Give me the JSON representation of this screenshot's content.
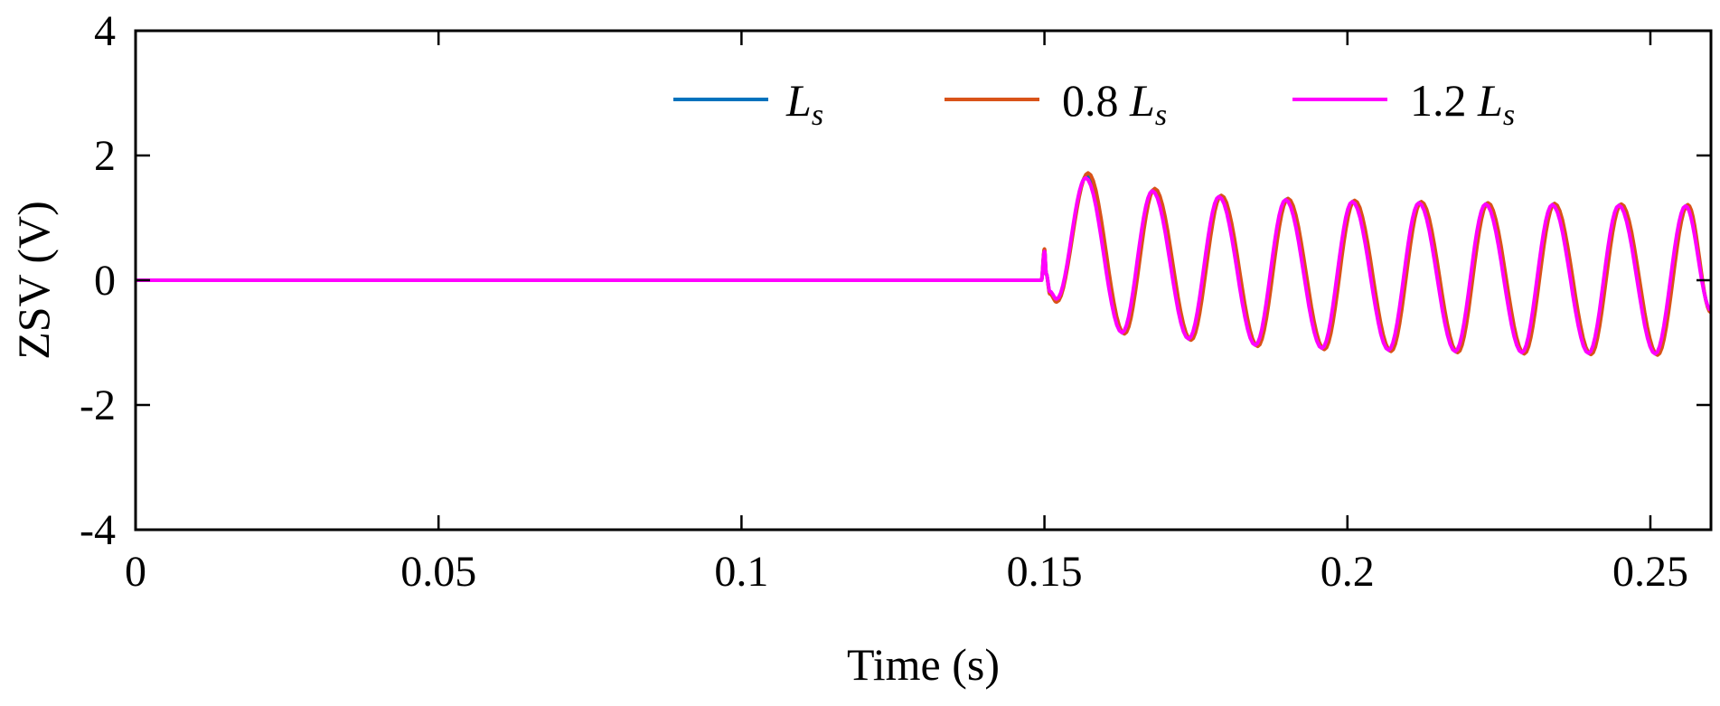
{
  "chart_data": {
    "type": "line",
    "title": "",
    "xlabel": "Time (s)",
    "ylabel": "ZSV (V)",
    "xlim": [
      0,
      0.26
    ],
    "ylim": [
      -4,
      4
    ],
    "x_ticks": [
      0,
      0.05,
      0.1,
      0.15,
      0.2,
      0.25
    ],
    "x_tick_labels": [
      "0",
      "0.05",
      "0.1",
      "0.15",
      "0.2",
      "0.25"
    ],
    "y_ticks": [
      -4,
      -2,
      0,
      2,
      4
    ],
    "y_tick_labels": [
      "-4",
      "-2",
      "0",
      "2",
      "4"
    ],
    "grid": false,
    "legend_position": "top-right",
    "series": [
      {
        "name": "Ls",
        "legend_prefix": "",
        "legend_var": "L",
        "legend_sub": "s",
        "color": "#0072BD",
        "x": [
          0,
          0.1495,
          0.15,
          0.1503,
          0.1509,
          0.152,
          0.157,
          0.163,
          0.168,
          0.174,
          0.179,
          0.185,
          0.19,
          0.196,
          0.201,
          0.207,
          0.212,
          0.218,
          0.223,
          0.229,
          0.234,
          0.24,
          0.245,
          0.251,
          0.256,
          0.26
        ],
        "y": [
          0,
          0,
          0.48,
          0.1,
          -0.2,
          -0.32,
          1.68,
          -0.85,
          1.45,
          -0.95,
          1.35,
          -1.05,
          1.3,
          -1.1,
          1.27,
          -1.13,
          1.25,
          -1.15,
          1.23,
          -1.17,
          1.22,
          -1.18,
          1.21,
          -1.19,
          1.2,
          -0.5
        ]
      },
      {
        "name": "0.8 Ls",
        "legend_prefix": "0.8 ",
        "legend_var": "L",
        "legend_sub": "s",
        "color": "#D95319",
        "x": [
          0,
          0.1495,
          0.15,
          0.1503,
          0.1509,
          0.152,
          0.1572,
          0.1632,
          0.1682,
          0.1742,
          0.1792,
          0.1852,
          0.1902,
          0.1962,
          0.2012,
          0.2072,
          0.2122,
          0.2182,
          0.2232,
          0.2292,
          0.2342,
          0.2402,
          0.2452,
          0.2512,
          0.2562,
          0.26
        ],
        "y": [
          0,
          0,
          0.5,
          0.1,
          -0.22,
          -0.35,
          1.72,
          -0.86,
          1.47,
          -0.96,
          1.36,
          -1.06,
          1.31,
          -1.11,
          1.28,
          -1.14,
          1.26,
          -1.16,
          1.24,
          -1.18,
          1.23,
          -1.19,
          1.22,
          -1.2,
          1.21,
          -0.52
        ]
      },
      {
        "name": "1.2 Ls",
        "legend_prefix": "1.2 ",
        "legend_var": "L",
        "legend_sub": "s",
        "color": "#FF00FF",
        "x": [
          0,
          0.1495,
          0.15,
          0.1503,
          0.1509,
          0.152,
          0.1568,
          0.1628,
          0.1678,
          0.1738,
          0.1788,
          0.1848,
          0.1898,
          0.1958,
          0.2008,
          0.2068,
          0.2118,
          0.2178,
          0.2228,
          0.2288,
          0.2338,
          0.2398,
          0.2448,
          0.2508,
          0.2558,
          0.26
        ],
        "y": [
          0,
          0,
          0.46,
          0.1,
          -0.18,
          -0.3,
          1.64,
          -0.84,
          1.43,
          -0.94,
          1.34,
          -1.04,
          1.29,
          -1.09,
          1.26,
          -1.12,
          1.24,
          -1.14,
          1.22,
          -1.16,
          1.21,
          -1.17,
          1.2,
          -1.18,
          1.19,
          -0.48
        ]
      }
    ]
  }
}
